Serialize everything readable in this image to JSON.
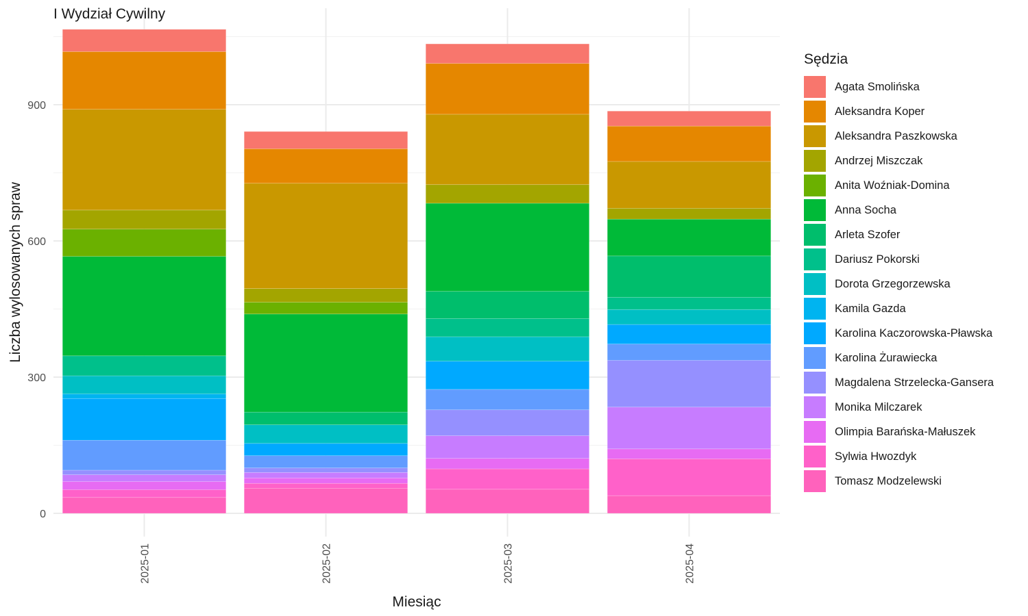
{
  "chart_data": {
    "type": "bar",
    "stacked": true,
    "title": "I Wydział Cywilny",
    "xlabel": "Miesiąc",
    "ylabel": "Liczba wylosowanych spraw",
    "ylim": [
      0,
      1100
    ],
    "yticks": [
      0,
      300,
      600,
      900
    ],
    "grid": true,
    "legend_title": "Sędzia",
    "legend_position": "right",
    "categories": [
      "2025-01",
      "2025-02",
      "2025-03",
      "2025-04"
    ],
    "series": [
      {
        "name": "Agata Smolińska",
        "color": "#F8766D",
        "values": [
          49,
          38,
          43,
          33
        ]
      },
      {
        "name": "Aleksandra Koper",
        "color": "#E58700",
        "values": [
          127,
          76,
          112,
          78
        ]
      },
      {
        "name": "Aleksandra Paszkowska",
        "color": "#C99800",
        "values": [
          222,
          232,
          155,
          103
        ]
      },
      {
        "name": "Andrzej Miszczak",
        "color": "#A3A500",
        "values": [
          42,
          30,
          41,
          24
        ]
      },
      {
        "name": "Anita Woźniak-Domina",
        "color": "#6BB100",
        "values": [
          60,
          26,
          0,
          0
        ]
      },
      {
        "name": "Anna Socha",
        "color": "#00BA38",
        "values": [
          219,
          216,
          194,
          81
        ]
      },
      {
        "name": "Arleta Szofer",
        "color": "#00BE6C",
        "values": [
          0,
          28,
          60,
          91
        ]
      },
      {
        "name": "Dariusz Pokorski",
        "color": "#00C08B",
        "values": [
          44,
          0,
          40,
          27
        ]
      },
      {
        "name": "Dorota Grzegorzewska",
        "color": "#00BFC4",
        "values": [
          40,
          41,
          54,
          33
        ]
      },
      {
        "name": "Kamila Gazda",
        "color": "#00B4F0",
        "values": [
          10,
          0,
          0,
          0
        ]
      },
      {
        "name": "Karolina Kaczorowska-Pławska",
        "color": "#00A9FF",
        "values": [
          92,
          27,
          62,
          43
        ]
      },
      {
        "name": "Karolina Żurawiecka",
        "color": "#619CFF",
        "values": [
          66,
          27,
          45,
          36
        ]
      },
      {
        "name": "Magdalena Strzelecka-Gansera",
        "color": "#9590FF",
        "values": [
          10,
          10,
          57,
          103
        ]
      },
      {
        "name": "Monika Milczarek",
        "color": "#C77CFF",
        "values": [
          15,
          12,
          50,
          92
        ]
      },
      {
        "name": "Olimpia Barańska-Małuszek",
        "color": "#E76BF3",
        "values": [
          18,
          12,
          23,
          22
        ]
      },
      {
        "name": "Sylwia Hwozdyk",
        "color": "#FF61C9",
        "values": [
          17,
          11,
          45,
          81
        ]
      },
      {
        "name": "Tomasz Modzelewski",
        "color": "#FF62BC",
        "values": [
          35,
          55,
          53,
          39
        ]
      }
    ]
  }
}
